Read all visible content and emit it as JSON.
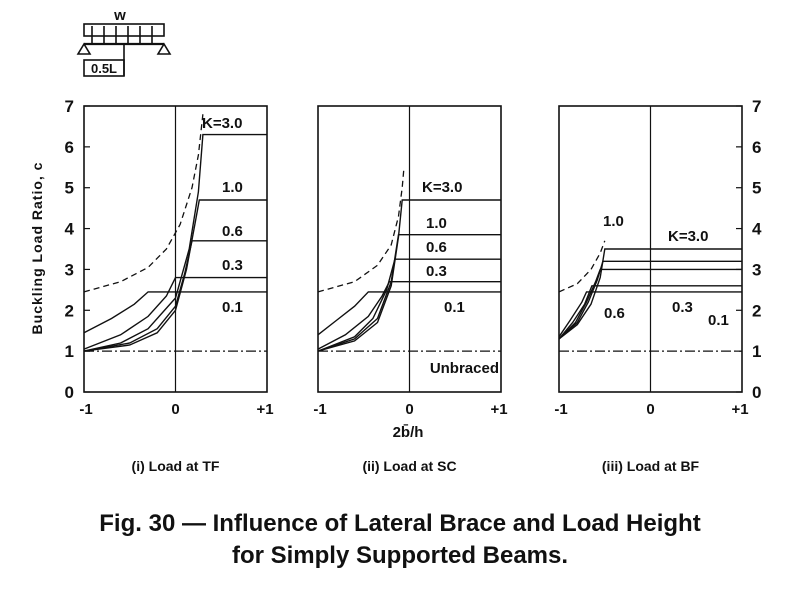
{
  "figure": {
    "caption_line1": "Fig. 30 — Influence of Lateral Brace and Load Height",
    "caption_line2": "for Simply Supported Beams.",
    "inset": {
      "load_label": "w",
      "length_label": "0.5L"
    },
    "y_axis_label": "Buckling Load Ratio, c",
    "x_axis_label": "2b̄/h"
  },
  "chart_data": [
    {
      "type": "line",
      "panel": "(i) Load at TF",
      "subtitle": "(i) Load at TF",
      "xlim": [
        -1,
        1
      ],
      "ylim": [
        0,
        7
      ],
      "x_ticks": [
        "-1",
        "0",
        "+1"
      ],
      "y_ticks": [
        "0",
        "1",
        "2",
        "3",
        "4",
        "5",
        "6",
        "7"
      ],
      "unbraced_level": 1.0,
      "series": [
        {
          "name": "K=3.0",
          "plateau": 6.3,
          "points": [
            [
              -1,
              1.0
            ],
            [
              -0.6,
              1.2
            ],
            [
              -0.3,
              1.55
            ],
            [
              0.0,
              2.3
            ],
            [
              0.15,
              3.5
            ],
            [
              0.25,
              4.9
            ],
            [
              0.3,
              6.3
            ],
            [
              1,
              6.3
            ]
          ]
        },
        {
          "name": "1.0",
          "plateau": 4.7,
          "points": [
            [
              -1,
              1.0
            ],
            [
              -0.5,
              1.15
            ],
            [
              -0.2,
              1.45
            ],
            [
              0.0,
              2.0
            ],
            [
              0.12,
              3.0
            ],
            [
              0.22,
              4.2
            ],
            [
              0.26,
              4.7
            ],
            [
              1,
              4.7
            ]
          ]
        },
        {
          "name": "0.6",
          "plateau": 3.7,
          "points": [
            [
              -1,
              1.0
            ],
            [
              -0.5,
              1.2
            ],
            [
              -0.2,
              1.55
            ],
            [
              0.0,
              2.1
            ],
            [
              0.1,
              2.9
            ],
            [
              0.18,
              3.7
            ],
            [
              1,
              3.7
            ]
          ]
        },
        {
          "name": "0.3",
          "plateau": 2.8,
          "points": [
            [
              -1,
              1.05
            ],
            [
              -0.6,
              1.4
            ],
            [
              -0.3,
              1.85
            ],
            [
              -0.1,
              2.35
            ],
            [
              0.0,
              2.8
            ],
            [
              1,
              2.8
            ]
          ]
        },
        {
          "name": "0.1",
          "plateau": 2.45,
          "points": [
            [
              -1,
              1.45
            ],
            [
              -0.7,
              1.8
            ],
            [
              -0.45,
              2.15
            ],
            [
              -0.3,
              2.45
            ],
            [
              1,
              2.45
            ]
          ]
        }
      ],
      "envelope": [
        [
          -1,
          2.45
        ],
        [
          -0.6,
          2.7
        ],
        [
          -0.3,
          3.05
        ],
        [
          -0.1,
          3.5
        ],
        [
          0.05,
          4.1
        ],
        [
          0.18,
          5.0
        ],
        [
          0.25,
          5.8
        ],
        [
          0.3,
          6.8
        ]
      ]
    },
    {
      "type": "line",
      "panel": "(ii) Load at SC",
      "subtitle": "(ii) Load at SC",
      "xlim": [
        -1,
        1
      ],
      "ylim": [
        0,
        7
      ],
      "x_ticks": [
        "-1",
        "0",
        "+1"
      ],
      "y_ticks": [],
      "unbraced_level": 1.0,
      "unbraced_label": "Unbraced",
      "series": [
        {
          "name": "K=3.0",
          "plateau": 4.7,
          "points": [
            [
              -1,
              1.0
            ],
            [
              -0.6,
              1.25
            ],
            [
              -0.35,
              1.7
            ],
            [
              -0.2,
              2.6
            ],
            [
              -0.12,
              3.8
            ],
            [
              -0.08,
              4.7
            ],
            [
              1,
              4.7
            ]
          ]
        },
        {
          "name": "1.0",
          "plateau": 3.85,
          "points": [
            [
              -1,
              1.0
            ],
            [
              -0.6,
              1.3
            ],
            [
              -0.35,
              1.8
            ],
            [
              -0.2,
              2.7
            ],
            [
              -0.12,
              3.85
            ],
            [
              1,
              3.85
            ]
          ]
        },
        {
          "name": "0.6",
          "plateau": 3.25,
          "points": [
            [
              -1,
              1.0
            ],
            [
              -0.6,
              1.35
            ],
            [
              -0.4,
              1.8
            ],
            [
              -0.25,
              2.5
            ],
            [
              -0.16,
              3.25
            ],
            [
              1,
              3.25
            ]
          ]
        },
        {
          "name": "0.3",
          "plateau": 2.7,
          "points": [
            [
              -1,
              1.05
            ],
            [
              -0.7,
              1.4
            ],
            [
              -0.45,
              1.85
            ],
            [
              -0.3,
              2.35
            ],
            [
              -0.22,
              2.7
            ],
            [
              1,
              2.7
            ]
          ]
        },
        {
          "name": "0.1",
          "plateau": 2.45,
          "points": [
            [
              -1,
              1.4
            ],
            [
              -0.8,
              1.75
            ],
            [
              -0.6,
              2.1
            ],
            [
              -0.45,
              2.45
            ],
            [
              1,
              2.45
            ]
          ]
        }
      ],
      "envelope": [
        [
          -1,
          2.45
        ],
        [
          -0.6,
          2.7
        ],
        [
          -0.35,
          3.1
        ],
        [
          -0.2,
          3.6
        ],
        [
          -0.12,
          4.3
        ],
        [
          -0.08,
          5.0
        ],
        [
          -0.06,
          5.5
        ]
      ]
    },
    {
      "type": "line",
      "panel": "(iii) Load at BF",
      "subtitle": "(iii) Load at BF",
      "xlim": [
        -1,
        1
      ],
      "ylim": [
        0,
        7
      ],
      "x_ticks": [
        "-1",
        "0",
        "+1"
      ],
      "y_ticks_right": [
        "0",
        "1",
        "2",
        "3",
        "4",
        "5",
        "6",
        "7"
      ],
      "unbraced_level": 1.0,
      "series": [
        {
          "name": "K=3.0",
          "plateau": 3.5,
          "points": [
            [
              -1,
              1.3
            ],
            [
              -0.8,
              1.65
            ],
            [
              -0.65,
              2.15
            ],
            [
              -0.55,
              2.8
            ],
            [
              -0.5,
              3.5
            ],
            [
              1,
              3.5
            ]
          ]
        },
        {
          "name": "1.0",
          "plateau": 3.2,
          "points": [
            [
              -1,
              1.3
            ],
            [
              -0.8,
              1.7
            ],
            [
              -0.68,
              2.2
            ],
            [
              -0.58,
              2.75
            ],
            [
              -0.52,
              3.2
            ],
            [
              1,
              3.2
            ]
          ]
        },
        {
          "name": "0.6",
          "plateau": 3.0,
          "points": [
            [
              -1,
              1.3
            ],
            [
              -0.82,
              1.7
            ],
            [
              -0.7,
              2.2
            ],
            [
              -0.6,
              2.7
            ],
            [
              -0.55,
              3.0
            ],
            [
              1,
              3.0
            ]
          ]
        },
        {
          "name": "0.3",
          "plateau": 2.6,
          "points": [
            [
              -1,
              1.3
            ],
            [
              -0.85,
              1.7
            ],
            [
              -0.72,
              2.15
            ],
            [
              -0.64,
              2.6
            ],
            [
              1,
              2.6
            ]
          ]
        },
        {
          "name": "0.1",
          "plateau": 2.45,
          "points": [
            [
              -1,
              1.35
            ],
            [
              -0.88,
              1.75
            ],
            [
              -0.75,
              2.2
            ],
            [
              -0.7,
              2.45
            ],
            [
              1,
              2.45
            ]
          ]
        }
      ],
      "envelope": [
        [
          -1,
          2.45
        ],
        [
          -0.8,
          2.65
        ],
        [
          -0.65,
          3.0
        ],
        [
          -0.55,
          3.4
        ],
        [
          -0.5,
          3.7
        ]
      ]
    }
  ]
}
